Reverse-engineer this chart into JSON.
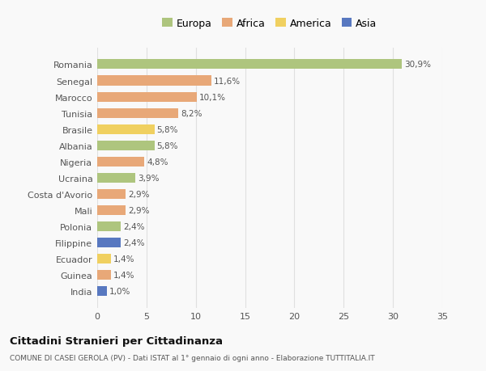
{
  "countries": [
    "Romania",
    "Senegal",
    "Marocco",
    "Tunisia",
    "Brasile",
    "Albania",
    "Nigeria",
    "Ucraina",
    "Costa d'Avorio",
    "Mali",
    "Polonia",
    "Filippine",
    "Ecuador",
    "Guinea",
    "India"
  ],
  "values": [
    30.9,
    11.6,
    10.1,
    8.2,
    5.8,
    5.8,
    4.8,
    3.9,
    2.9,
    2.9,
    2.4,
    2.4,
    1.4,
    1.4,
    1.0
  ],
  "labels": [
    "30,9%",
    "11,6%",
    "10,1%",
    "8,2%",
    "5,8%",
    "5,8%",
    "4,8%",
    "3,9%",
    "2,9%",
    "2,9%",
    "2,4%",
    "2,4%",
    "1,4%",
    "1,4%",
    "1,0%"
  ],
  "continents": [
    "Europa",
    "Africa",
    "Africa",
    "Africa",
    "America",
    "Europa",
    "Africa",
    "Europa",
    "Africa",
    "Africa",
    "Europa",
    "Asia",
    "America",
    "Africa",
    "Asia"
  ],
  "colors": {
    "Europa": "#aec57e",
    "Africa": "#e8a878",
    "America": "#f0d060",
    "Asia": "#5878c0"
  },
  "title": "Cittadini Stranieri per Cittadinanza",
  "subtitle": "COMUNE DI CASEI GEROLA (PV) - Dati ISTAT al 1° gennaio di ogni anno - Elaborazione TUTTITALIA.IT",
  "xlim": [
    0,
    35
  ],
  "xticks": [
    0,
    5,
    10,
    15,
    20,
    25,
    30,
    35
  ],
  "background_color": "#f9f9f9",
  "grid_color": "#e0e0e0"
}
